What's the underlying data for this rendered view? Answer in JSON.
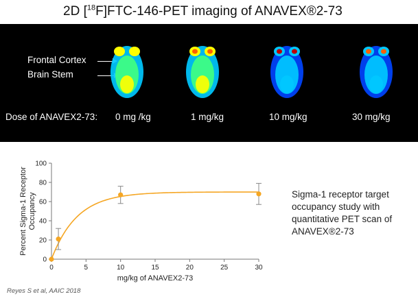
{
  "title": {
    "prefix": "2D [",
    "superscript": "18",
    "suffix": "F]FTC-146-PET imaging of ANAVEX®2-73"
  },
  "pet_panel": {
    "region_labels": [
      "Frontal Cortex",
      "Brain Stem"
    ],
    "dose_label": "Dose of ANAVEX2-73:",
    "doses": [
      "0 mg /kg",
      "1 mg/kg",
      "10 mg/kg",
      "30 mg/kg"
    ],
    "scan_colormap": [
      "#00008f",
      "#0044ff",
      "#00c8ff",
      "#40ff80",
      "#ffff00",
      "#ff6000",
      "#c00000"
    ]
  },
  "caption": "Sigma-1 receptor target occupancy study with quantitative PET scan of ANAVEX®2-73",
  "footnote": "Reyes S et al, AAIC 2018",
  "chart_data": {
    "type": "scatter",
    "xlabel": "mg/kg of ANAVEX2-73",
    "ylabel_lines": [
      "Percent Sigma-1 Receptor",
      "Occupancy"
    ],
    "xlim": [
      0,
      30
    ],
    "ylim": [
      0,
      100
    ],
    "xticks": [
      0,
      5,
      10,
      15,
      20,
      25,
      30
    ],
    "yticks": [
      0,
      20,
      40,
      60,
      80,
      100
    ],
    "grid": false,
    "color": "#f5a623",
    "points": [
      {
        "x": 0,
        "y": 0,
        "err": 0
      },
      {
        "x": 1,
        "y": 21,
        "err": 11
      },
      {
        "x": 10,
        "y": 67,
        "err": 9
      },
      {
        "x": 30,
        "y": 68,
        "err": 11
      }
    ],
    "fit_curve": {
      "model": "one-site saturation fit",
      "ymax": 70,
      "k": 0.27
    }
  }
}
